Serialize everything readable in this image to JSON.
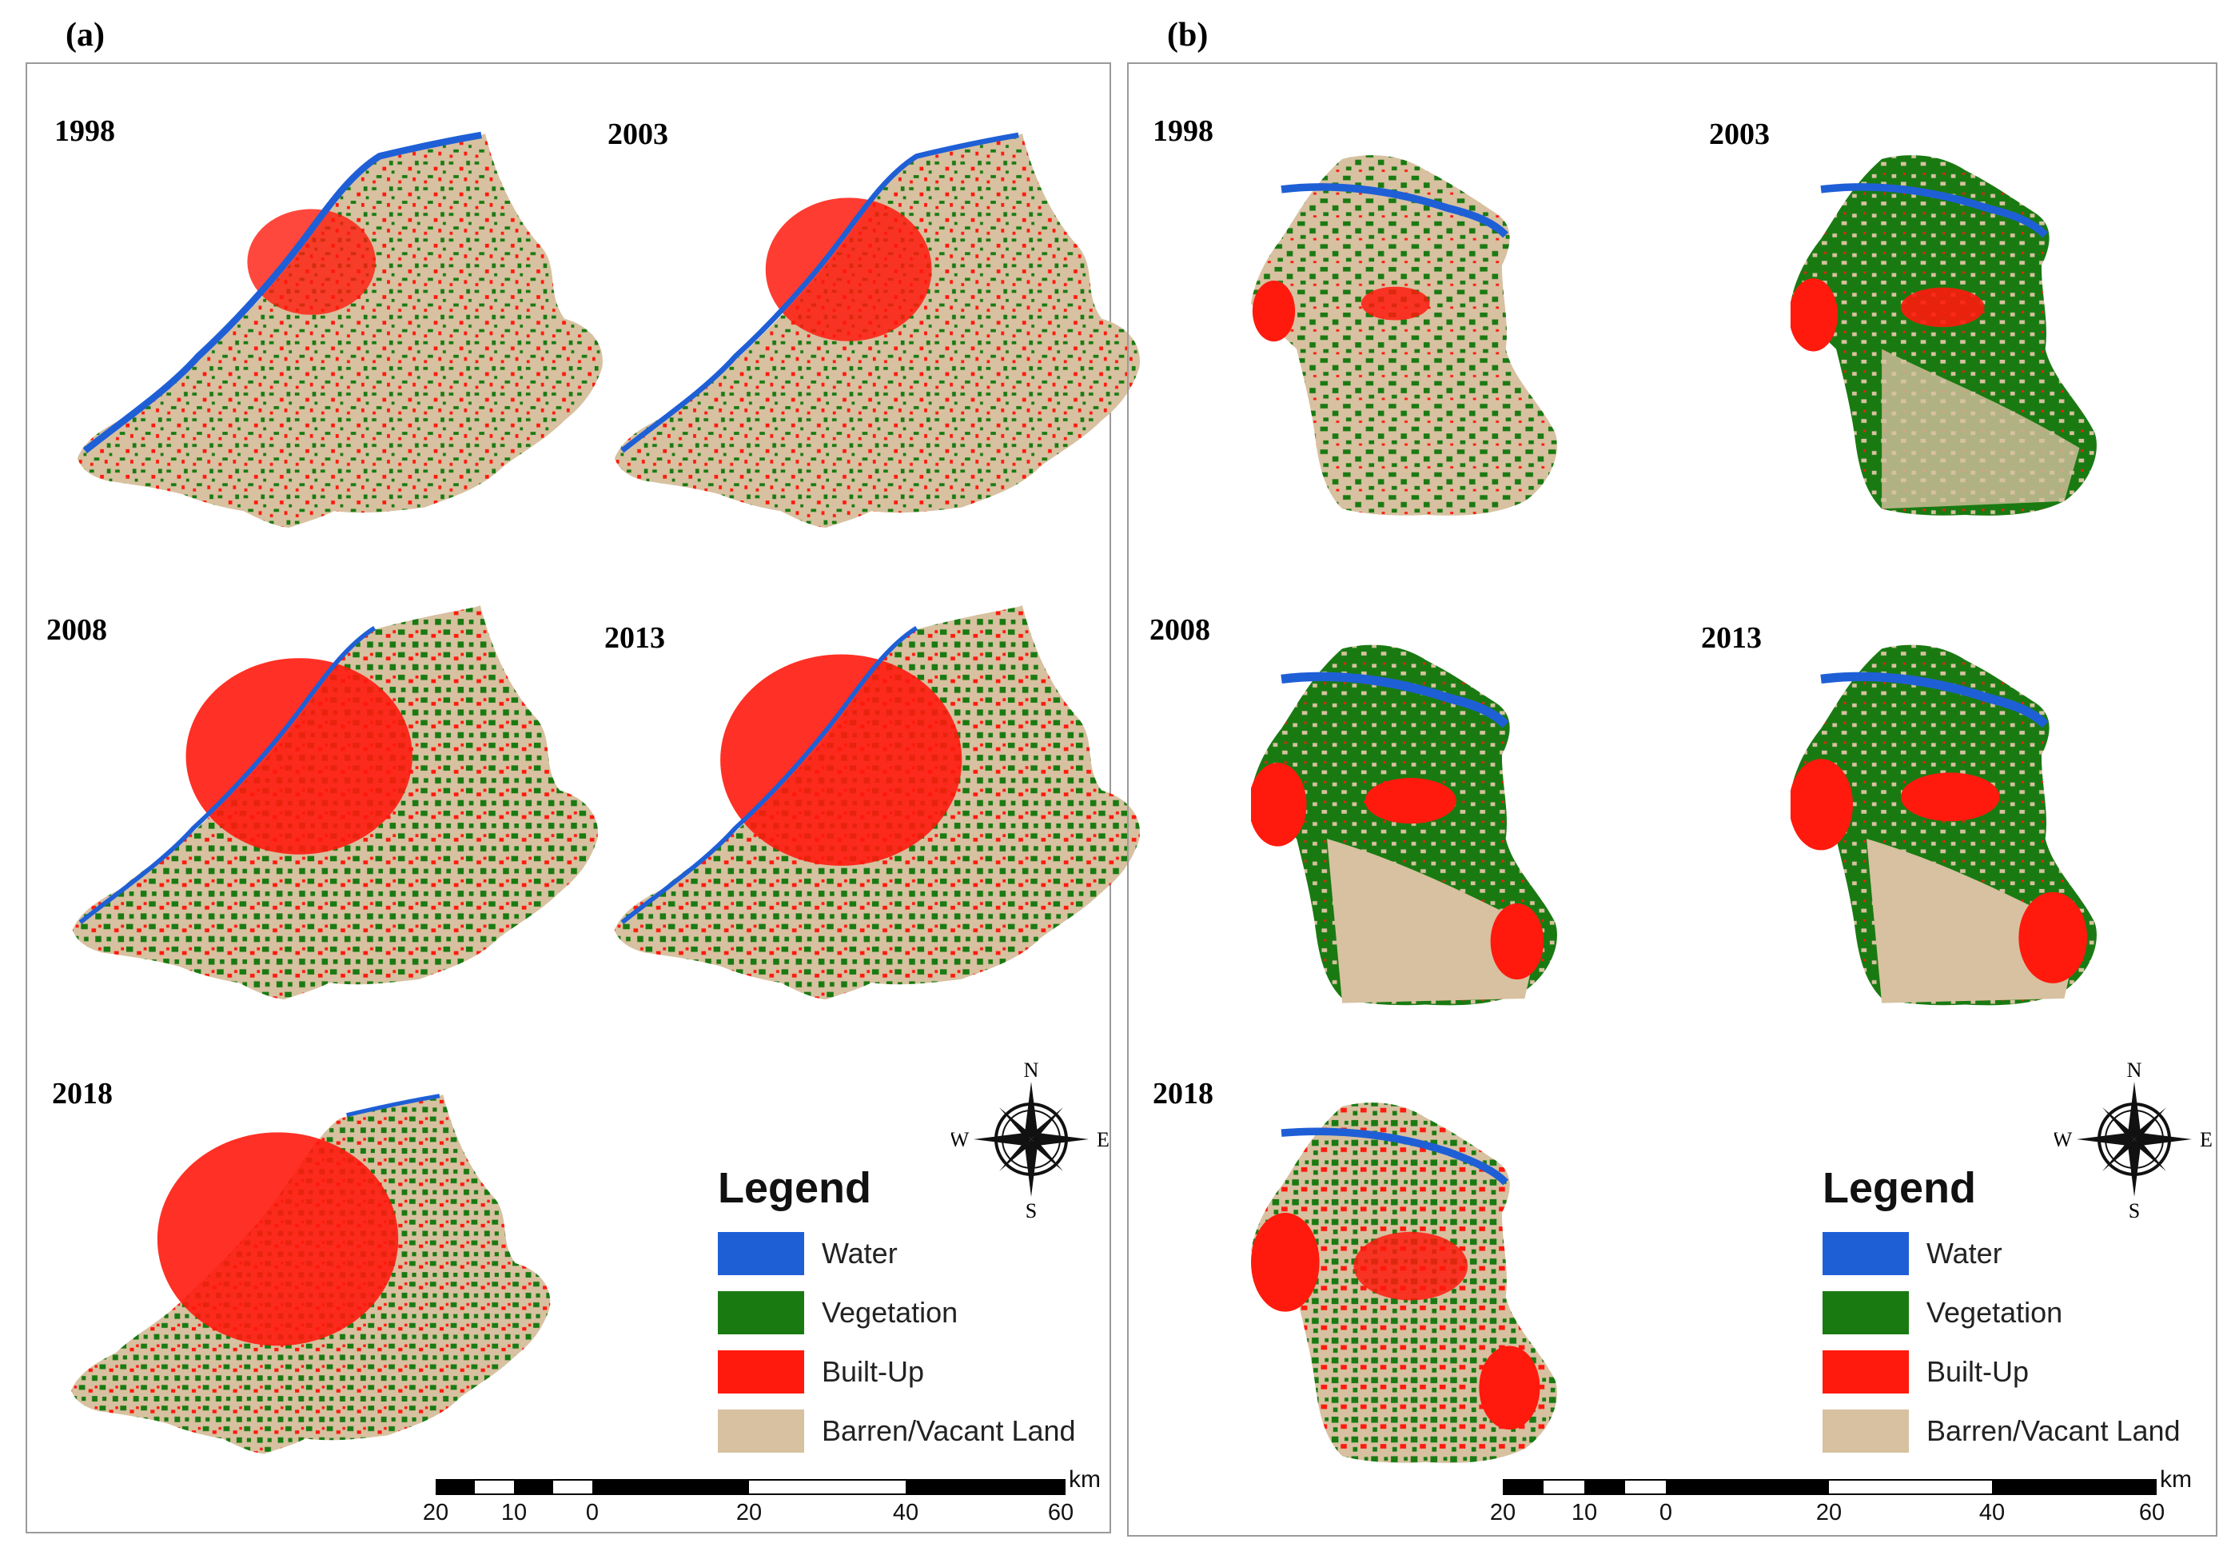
{
  "colors": {
    "water": "#1f5fd6",
    "vegetation": "#1a7a12",
    "builtup": "#ff1a0d",
    "barren": "#d7c1a0"
  },
  "panels": [
    {
      "label": "(a)",
      "years": [
        "1998",
        "2003",
        "2008",
        "2013",
        "2018"
      ],
      "legend": {
        "title": "Legend",
        "items": [
          "Water",
          "Vegetation",
          "Built-Up",
          "Barren/Vacant Land"
        ]
      },
      "compass": {
        "n": "N",
        "s": "S",
        "e": "E",
        "w": "W"
      },
      "scale": {
        "ticks": [
          "20",
          "10",
          "0",
          "20",
          "40",
          "60"
        ],
        "unit": "km"
      }
    },
    {
      "label": "(b)",
      "years": [
        "1998",
        "2003",
        "2008",
        "2013",
        "2018"
      ],
      "legend": {
        "title": "Legend",
        "items": [
          "Water",
          "Vegetation",
          "Built-Up",
          "Barren/Vacant Land"
        ]
      },
      "compass": {
        "n": "N",
        "s": "S",
        "e": "E",
        "w": "W"
      },
      "scale": {
        "ticks": [
          "20",
          "10",
          "0",
          "20",
          "40",
          "60"
        ],
        "unit": "km"
      }
    }
  ]
}
